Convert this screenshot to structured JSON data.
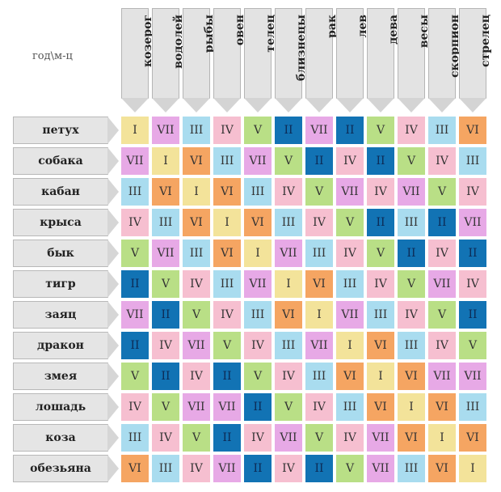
{
  "corner_label": "год\\м-ц",
  "months": [
    "козерог",
    "водолей",
    "рыбы",
    "овен",
    "телец",
    "близнецы",
    "рак",
    "лев",
    "дева",
    "весы",
    "скорпион",
    "стрелец"
  ],
  "years": [
    "петух",
    "собака",
    "кабан",
    "крыса",
    "бык",
    "тигр",
    "заяц",
    "дракон",
    "змея",
    "лошадь",
    "коза",
    "обезьяна"
  ],
  "colors": {
    "I": "#f3e39a",
    "II": "#1273b4",
    "III": "#a9dcef",
    "IV": "#f6bfd0",
    "V": "#b9df86",
    "VI": "#f5a562",
    "VII": "#e7a9e6"
  },
  "table": [
    [
      "I",
      "VII",
      "III",
      "IV",
      "V",
      "II",
      "VII",
      "II",
      "V",
      "IV",
      "III",
      "VI"
    ],
    [
      "VII",
      "I",
      "VI",
      "III",
      "VII",
      "V",
      "II",
      "IV",
      "II",
      "V",
      "IV",
      "III"
    ],
    [
      "III",
      "VI",
      "I",
      "VI",
      "III",
      "IV",
      "V",
      "VII",
      "IV",
      "VII",
      "V",
      "IV"
    ],
    [
      "IV",
      "III",
      "VI",
      "I",
      "VI",
      "III",
      "IV",
      "V",
      "II",
      "III",
      "II",
      "VII"
    ],
    [
      "V",
      "VII",
      "III",
      "VI",
      "I",
      "VII",
      "III",
      "IV",
      "V",
      "II",
      "IV",
      "II"
    ],
    [
      "II",
      "V",
      "IV",
      "III",
      "VII",
      "I",
      "VI",
      "III",
      "IV",
      "V",
      "VII",
      "IV"
    ],
    [
      "VII",
      "II",
      "V",
      "IV",
      "III",
      "VI",
      "I",
      "VII",
      "III",
      "IV",
      "V",
      "II"
    ],
    [
      "II",
      "IV",
      "VII",
      "V",
      "IV",
      "III",
      "VII",
      "I",
      "VI",
      "III",
      "IV",
      "V"
    ],
    [
      "V",
      "II",
      "IV",
      "II",
      "V",
      "IV",
      "III",
      "VI",
      "I",
      "VI",
      "VII",
      "VII"
    ],
    [
      "IV",
      "V",
      "VII",
      "VII",
      "II",
      "V",
      "IV",
      "III",
      "VI",
      "I",
      "VI",
      "III"
    ],
    [
      "III",
      "IV",
      "V",
      "II",
      "IV",
      "VII",
      "V",
      "IV",
      "VII",
      "VI",
      "I",
      "VI"
    ],
    [
      "VI",
      "III",
      "IV",
      "VII",
      "II",
      "IV",
      "II",
      "V",
      "VII",
      "III",
      "VI",
      "I"
    ]
  ]
}
